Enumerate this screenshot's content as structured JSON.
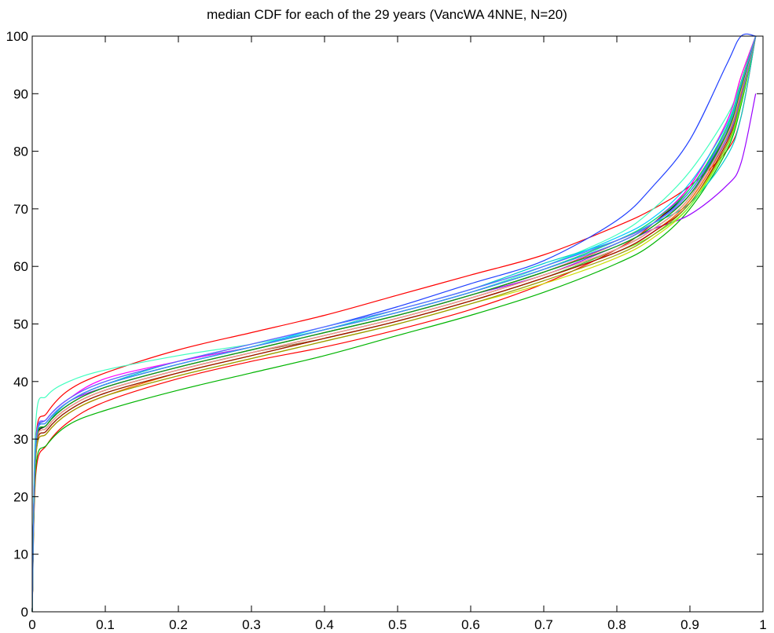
{
  "chart_data": {
    "type": "line",
    "title": "median CDF for each of the 29 years (VancWA 4NNE, N=20)",
    "xlabel": "",
    "ylabel": "",
    "xlim": [
      0,
      1
    ],
    "ylim": [
      0,
      100
    ],
    "xticks": [
      0,
      0.1,
      0.2,
      0.3,
      0.4,
      0.5,
      0.6,
      0.7,
      0.8,
      0.9,
      1
    ],
    "xtick_labels": [
      "0",
      "0.1",
      "0.2",
      "0.3",
      "0.4",
      "0.5",
      "0.6",
      "0.7",
      "0.8",
      "0.9",
      "1"
    ],
    "yticks": [
      0,
      10,
      20,
      30,
      40,
      50,
      60,
      70,
      80,
      90,
      100
    ],
    "ytick_labels": [
      "0",
      "10",
      "20",
      "30",
      "40",
      "50",
      "60",
      "70",
      "80",
      "90",
      "100"
    ],
    "grid": false,
    "legend": "none",
    "x": [
      0.005,
      0.02,
      0.05,
      0.1,
      0.2,
      0.3,
      0.4,
      0.5,
      0.6,
      0.7,
      0.8,
      0.85,
      0.9,
      0.95,
      0.97,
      0.99
    ],
    "series": [
      {
        "color": "#ff0000",
        "values": [
          24.0,
          29.0,
          33.0,
          36.5,
          40.5,
          43.5,
          46.0,
          49.0,
          52.5,
          57.0,
          63.0,
          67.5,
          74.0,
          85.0,
          93.0,
          100
        ]
      },
      {
        "color": "#ff0000",
        "values": [
          30.0,
          34.5,
          38.5,
          41.5,
          45.5,
          48.5,
          51.5,
          55.0,
          58.5,
          62.0,
          67.0,
          70.0,
          74.0,
          80.0,
          86.0,
          100
        ]
      },
      {
        "color": "#00b400",
        "values": [
          25.0,
          29.0,
          32.5,
          35.0,
          38.5,
          41.5,
          44.5,
          48.0,
          51.5,
          55.5,
          60.5,
          64.0,
          70.0,
          80.0,
          88.0,
          100
        ]
      },
      {
        "color": "#1f3fff",
        "values": [
          29.0,
          33.5,
          37.0,
          40.0,
          43.5,
          46.5,
          49.5,
          53.0,
          57.0,
          61.0,
          68.0,
          74.0,
          82.0,
          95.0,
          100,
          100
        ]
      },
      {
        "color": "#40ffbf",
        "values": [
          33.0,
          37.5,
          40.0,
          42.0,
          44.5,
          46.5,
          49.0,
          52.0,
          55.5,
          60.0,
          65.5,
          70.0,
          76.5,
          86.0,
          92.0,
          100
        ]
      },
      {
        "color": "#9900ff",
        "values": [
          29.0,
          33.0,
          36.5,
          39.0,
          42.5,
          45.5,
          48.5,
          51.5,
          55.0,
          58.5,
          63.5,
          66.5,
          69.0,
          74.0,
          78.0,
          90.0
        ]
      },
      {
        "color": "#ccdd00",
        "values": [
          27.0,
          31.0,
          34.5,
          37.5,
          41.0,
          44.0,
          47.0,
          50.0,
          53.5,
          57.0,
          61.5,
          65.0,
          70.5,
          81.0,
          89.0,
          100
        ]
      },
      {
        "color": "#006400",
        "values": [
          28.0,
          32.0,
          35.5,
          38.5,
          42.0,
          45.0,
          48.0,
          51.0,
          54.5,
          58.5,
          63.0,
          66.5,
          72.0,
          83.0,
          91.0,
          100
        ]
      },
      {
        "color": "#00cccc",
        "values": [
          28.5,
          32.5,
          36.5,
          39.5,
          43.5,
          46.0,
          49.0,
          52.5,
          56.0,
          60.5,
          64.5,
          67.5,
          71.0,
          79.0,
          86.0,
          100
        ]
      },
      {
        "color": "#000000",
        "values": [
          28.0,
          32.5,
          36.0,
          39.0,
          42.5,
          45.5,
          48.5,
          51.5,
          55.0,
          59.0,
          64.0,
          67.5,
          73.5,
          84.0,
          92.0,
          100
        ]
      },
      {
        "color": "#ff00ff",
        "values": [
          29.5,
          33.5,
          37.0,
          40.5,
          43.5,
          46.0,
          49.0,
          52.0,
          55.5,
          59.5,
          64.5,
          68.0,
          74.0,
          85.0,
          93.0,
          100
        ]
      },
      {
        "color": "#996633",
        "values": [
          28.0,
          32.0,
          35.5,
          38.5,
          42.0,
          45.0,
          47.5,
          50.5,
          54.0,
          58.0,
          62.5,
          66.0,
          71.5,
          82.0,
          90.0,
          100
        ]
      },
      {
        "color": "#33cc33",
        "values": [
          27.5,
          31.5,
          35.0,
          38.0,
          41.5,
          44.5,
          47.5,
          50.5,
          54.0,
          58.0,
          63.0,
          66.5,
          72.0,
          82.5,
          90.0,
          100
        ]
      },
      {
        "color": "#0055ff",
        "values": [
          29.0,
          33.0,
          36.5,
          39.5,
          43.0,
          46.0,
          49.0,
          52.0,
          55.5,
          59.5,
          64.5,
          68.0,
          73.5,
          83.5,
          91.0,
          100
        ]
      },
      {
        "color": "#ff6600",
        "values": [
          27.0,
          31.0,
          34.5,
          37.5,
          41.5,
          44.5,
          47.5,
          50.5,
          54.0,
          58.0,
          62.5,
          66.0,
          71.5,
          82.0,
          90.0,
          100
        ]
      },
      {
        "color": "#00ccff",
        "values": [
          29.0,
          33.0,
          36.5,
          39.5,
          43.0,
          46.0,
          49.5,
          52.5,
          56.0,
          60.0,
          65.0,
          68.5,
          74.5,
          84.5,
          92.0,
          100
        ]
      },
      {
        "color": "#ff3366",
        "values": [
          28.5,
          32.5,
          36.0,
          39.0,
          42.5,
          45.5,
          48.5,
          51.5,
          55.0,
          59.0,
          64.0,
          67.5,
          73.0,
          83.5,
          91.0,
          100
        ]
      },
      {
        "color": "#66ff33",
        "values": [
          27.5,
          31.5,
          35.0,
          38.0,
          41.5,
          44.5,
          47.5,
          50.5,
          54.0,
          58.0,
          62.5,
          65.5,
          70.5,
          80.5,
          88.5,
          100
        ]
      },
      {
        "color": "#3333aa",
        "values": [
          29.0,
          33.0,
          36.5,
          39.5,
          43.0,
          46.0,
          49.0,
          52.0,
          55.5,
          59.5,
          64.0,
          67.5,
          73.0,
          83.0,
          90.5,
          100
        ]
      },
      {
        "color": "#aa0000",
        "values": [
          27.5,
          31.5,
          35.0,
          38.0,
          41.5,
          44.5,
          47.5,
          50.5,
          54.0,
          58.0,
          62.5,
          66.0,
          71.0,
          81.5,
          89.5,
          100
        ]
      },
      {
        "color": "#008888",
        "values": [
          28.5,
          32.5,
          36.0,
          39.0,
          42.5,
          45.5,
          48.5,
          51.5,
          55.0,
          59.0,
          63.5,
          67.0,
          72.5,
          82.5,
          90.5,
          100
        ]
      },
      {
        "color": "#999900",
        "values": [
          27.0,
          31.0,
          34.5,
          37.5,
          41.0,
          44.0,
          47.0,
          50.0,
          53.5,
          57.5,
          62.0,
          65.5,
          71.0,
          81.0,
          89.0,
          100
        ]
      },
      {
        "color": "#cc66ff",
        "values": [
          28.5,
          32.5,
          36.0,
          39.0,
          42.5,
          45.5,
          48.5,
          51.5,
          55.0,
          59.0,
          63.5,
          67.0,
          72.5,
          83.0,
          91.0,
          100
        ]
      },
      {
        "color": "#00ff66",
        "values": [
          29.0,
          33.0,
          36.5,
          39.5,
          43.0,
          46.0,
          49.0,
          52.0,
          55.5,
          59.5,
          64.5,
          68.0,
          73.5,
          84.0,
          92.0,
          100
        ]
      },
      {
        "color": "#663300",
        "values": [
          28.0,
          32.0,
          35.5,
          38.5,
          42.0,
          45.0,
          48.0,
          51.0,
          54.5,
          58.5,
          63.0,
          66.5,
          72.0,
          82.5,
          90.5,
          100
        ]
      },
      {
        "color": "#6666ff",
        "values": [
          29.5,
          33.5,
          37.0,
          40.0,
          43.5,
          46.5,
          49.5,
          52.5,
          56.0,
          60.0,
          64.5,
          67.5,
          72.5,
          82.0,
          89.5,
          100
        ]
      },
      {
        "color": "#ff9999",
        "values": [
          28.0,
          32.0,
          35.5,
          38.5,
          42.0,
          45.0,
          48.0,
          51.0,
          54.5,
          58.5,
          63.0,
          66.5,
          72.0,
          82.5,
          90.5,
          100
        ]
      },
      {
        "color": "#00aa00",
        "values": [
          28.5,
          32.5,
          36.0,
          39.0,
          42.5,
          45.5,
          48.5,
          51.5,
          55.0,
          59.0,
          63.5,
          67.0,
          72.5,
          83.0,
          91.0,
          100
        ]
      },
      {
        "color": "#4488ff",
        "values": [
          29.0,
          33.0,
          36.5,
          39.5,
          43.0,
          46.0,
          49.0,
          52.0,
          55.5,
          59.5,
          64.0,
          67.5,
          73.0,
          83.5,
          91.5,
          100
        ]
      }
    ]
  }
}
